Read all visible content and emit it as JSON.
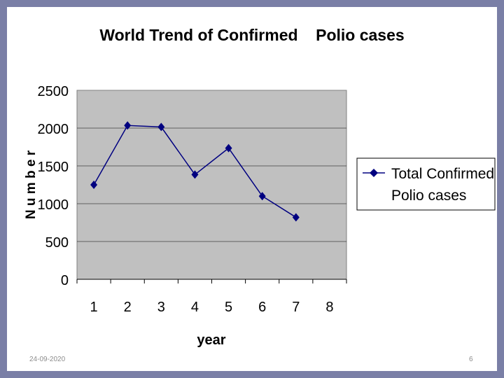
{
  "slide": {
    "date": "24-09-2020",
    "page_number": "6"
  },
  "chart_data": {
    "type": "line",
    "title": "World Trend of Confirmed    Polio cases",
    "xlabel": "year",
    "ylabel": "N u m b e r",
    "categories": [
      "1",
      "2",
      "3",
      "4",
      "5",
      "6",
      "7",
      "8"
    ],
    "series": [
      {
        "name": "Total Confirmed Polio cases",
        "values": [
          1250,
          2035,
          2015,
          1385,
          1735,
          1100,
          820,
          null
        ],
        "color": "#000080"
      }
    ],
    "y_ticks": [
      "0",
      "500",
      "1000",
      "1500",
      "2000",
      "2500"
    ],
    "ylim": [
      0,
      2500
    ],
    "grid": true,
    "legend_position": "right",
    "plot_background": "#c0c0c0"
  }
}
